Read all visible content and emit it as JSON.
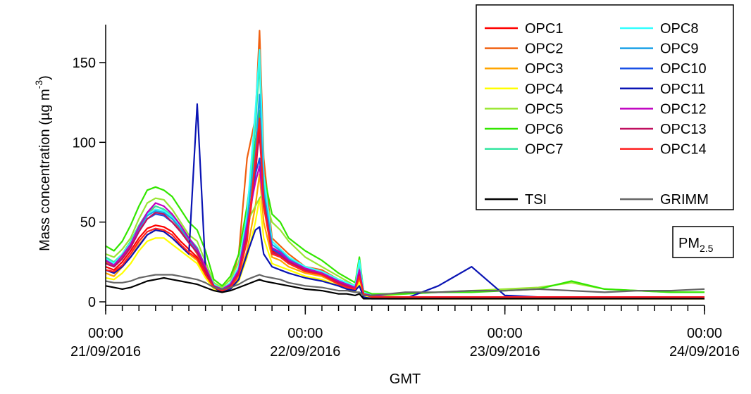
{
  "chart_data": {
    "type": "line",
    "ylabel": [
      "Mass concentration (µg m",
      "-3",
      ")"
    ],
    "xlabel": "GMT",
    "annotation": {
      "text": "PM",
      "subscript": "2.5"
    },
    "x": [
      0,
      1,
      2,
      3,
      4,
      5,
      6,
      7,
      8,
      9,
      10,
      11,
      12,
      13,
      14,
      15,
      16,
      17,
      18,
      18.5,
      19,
      20,
      21,
      22,
      24,
      26,
      28,
      29,
      30,
      30.5,
      31,
      32,
      34,
      36,
      40,
      44,
      48,
      52,
      56,
      60,
      64,
      68,
      72
    ],
    "xlim": [
      0,
      72
    ],
    "xticks": [
      {
        "value": 0,
        "label": [
          "00:00",
          "21/09/2016"
        ]
      },
      {
        "value": 24,
        "label": [
          "00:00",
          "22/09/2016"
        ]
      },
      {
        "value": 48,
        "label": [
          "00:00",
          "23/09/2016"
        ]
      },
      {
        "value": 72,
        "label": [
          "00:00",
          "24/09/2016"
        ]
      }
    ],
    "xminorticks": [
      0,
      2,
      4,
      6,
      8,
      10,
      12,
      14,
      16,
      18,
      20,
      22,
      24,
      26,
      28,
      30,
      32,
      34,
      36,
      38,
      40,
      42,
      44,
      46,
      48,
      50,
      52,
      54,
      56,
      58,
      60,
      62,
      64,
      66,
      68,
      70,
      72
    ],
    "ylim": [
      -2.2,
      173.8
    ],
    "yticks": [
      0,
      50,
      100,
      150
    ],
    "series": [
      {
        "name": "OPC1",
        "color": "#ff0000",
        "values": [
          22,
          20,
          25,
          32,
          40,
          46,
          48,
          47,
          44,
          38,
          33,
          28,
          18,
          10,
          8,
          10,
          18,
          40,
          80,
          110,
          70,
          32,
          30,
          26,
          20,
          18,
          12,
          10,
          8,
          18,
          6,
          4,
          3,
          3,
          3,
          3,
          3,
          3,
          3,
          3,
          3,
          3,
          3
        ]
      },
      {
        "name": "OPC2",
        "color": "#f06010",
        "values": [
          25,
          22,
          28,
          35,
          45,
          55,
          60,
          58,
          52,
          45,
          38,
          30,
          20,
          11,
          8,
          12,
          30,
          90,
          115,
          170,
          90,
          40,
          35,
          30,
          22,
          20,
          14,
          11,
          9,
          22,
          6,
          4,
          3,
          3,
          3,
          3,
          3,
          3,
          3,
          3,
          3,
          3,
          3
        ]
      },
      {
        "name": "OPC3",
        "color": "#ffa500",
        "values": [
          18,
          16,
          22,
          28,
          36,
          42,
          45,
          44,
          40,
          35,
          30,
          26,
          16,
          9,
          7,
          9,
          15,
          32,
          60,
          80,
          50,
          28,
          26,
          22,
          18,
          16,
          11,
          9,
          7,
          14,
          5,
          3,
          2,
          2,
          2,
          2,
          2,
          2,
          2,
          2,
          2,
          2,
          2
        ]
      },
      {
        "name": "OPC4",
        "color": "#ffff00",
        "values": [
          15,
          14,
          18,
          24,
          32,
          38,
          40,
          40,
          36,
          32,
          28,
          24,
          15,
          8,
          6,
          8,
          13,
          28,
          50,
          65,
          40,
          24,
          22,
          20,
          16,
          14,
          10,
          8,
          6,
          12,
          4,
          3,
          2,
          2,
          2,
          2,
          2,
          2,
          2,
          2,
          2,
          2,
          2
        ]
      },
      {
        "name": "OPC5",
        "color": "#99e632",
        "values": [
          30,
          28,
          33,
          40,
          52,
          62,
          65,
          64,
          58,
          50,
          42,
          38,
          25,
          12,
          9,
          14,
          25,
          50,
          60,
          65,
          68,
          50,
          45,
          38,
          28,
          22,
          16,
          13,
          10,
          20,
          6,
          4,
          4,
          5,
          6,
          7,
          8,
          9,
          12,
          8,
          7,
          6,
          6
        ]
      },
      {
        "name": "OPC6",
        "color": "#33e600",
        "values": [
          35,
          32,
          38,
          48,
          60,
          70,
          72,
          70,
          66,
          58,
          50,
          45,
          32,
          14,
          10,
          16,
          30,
          60,
          100,
          120,
          80,
          55,
          50,
          40,
          32,
          26,
          18,
          15,
          12,
          28,
          7,
          5,
          5,
          5,
          6,
          6,
          7,
          8,
          13,
          8,
          7,
          6,
          6
        ]
      },
      {
        "name": "OPC7",
        "color": "#33e6a0",
        "values": [
          28,
          25,
          30,
          38,
          48,
          56,
          60,
          58,
          54,
          48,
          40,
          34,
          22,
          11,
          8,
          12,
          22,
          55,
          110,
          150,
          75,
          38,
          33,
          28,
          22,
          19,
          14,
          12,
          10,
          25,
          6,
          4,
          3,
          3,
          3,
          3,
          3,
          3,
          3,
          3,
          3,
          3,
          3
        ]
      },
      {
        "name": "OPC8",
        "color": "#33ffff",
        "values": [
          27,
          24,
          30,
          37,
          47,
          55,
          58,
          57,
          53,
          47,
          40,
          33,
          22,
          11,
          8,
          12,
          22,
          55,
          120,
          158,
          80,
          38,
          33,
          28,
          22,
          19,
          14,
          12,
          10,
          26,
          6,
          4,
          3,
          3,
          3,
          3,
          3,
          3,
          3,
          3,
          3,
          3,
          3
        ]
      },
      {
        "name": "OPC9",
        "color": "#1aa0e6",
        "values": [
          26,
          23,
          29,
          36,
          46,
          54,
          57,
          56,
          52,
          46,
          39,
          32,
          21,
          10,
          8,
          11,
          20,
          50,
          95,
          130,
          70,
          36,
          32,
          27,
          21,
          18,
          13,
          11,
          9,
          20,
          5,
          4,
          3,
          3,
          3,
          3,
          3,
          3,
          3,
          3,
          3,
          3,
          3
        ]
      },
      {
        "name": "OPC10",
        "color": "#1a50e6",
        "values": [
          24,
          22,
          27,
          34,
          44,
          52,
          55,
          54,
          50,
          44,
          37,
          31,
          20,
          10,
          7,
          10,
          19,
          45,
          80,
          90,
          60,
          33,
          30,
          25,
          20,
          17,
          12,
          10,
          8,
          18,
          5,
          3,
          3,
          3,
          3,
          3,
          3,
          3,
          3,
          3,
          3,
          3,
          3
        ]
      },
      {
        "name": "OPC11",
        "color": "#0a14b4",
        "values": [
          20,
          18,
          22,
          28,
          35,
          42,
          45,
          44,
          40,
          35,
          30,
          124,
          20,
          9,
          6,
          8,
          14,
          30,
          45,
          47,
          30,
          22,
          20,
          18,
          15,
          13,
          10,
          8,
          7,
          10,
          3,
          2,
          2,
          2,
          10,
          22,
          4,
          3,
          3,
          3,
          3,
          3,
          3
        ]
      },
      {
        "name": "OPC12",
        "color": "#c000c0",
        "values": [
          26,
          23,
          29,
          36,
          47,
          56,
          62,
          60,
          55,
          48,
          40,
          33,
          22,
          10,
          8,
          11,
          20,
          48,
          75,
          85,
          60,
          34,
          31,
          26,
          21,
          18,
          13,
          11,
          9,
          20,
          5,
          4,
          3,
          3,
          3,
          3,
          3,
          3,
          3,
          3,
          3,
          3,
          3
        ]
      },
      {
        "name": "OPC13",
        "color": "#c01060",
        "values": [
          24,
          22,
          27,
          34,
          44,
          52,
          56,
          55,
          50,
          44,
          37,
          31,
          20,
          10,
          7,
          10,
          18,
          42,
          85,
          105,
          65,
          31,
          29,
          25,
          20,
          17,
          12,
          10,
          8,
          17,
          5,
          3,
          3,
          3,
          3,
          3,
          3,
          3,
          3,
          3,
          3,
          3,
          3
        ]
      },
      {
        "name": "OPC14",
        "color": "#ff2020",
        "values": [
          20,
          19,
          23,
          30,
          38,
          44,
          46,
          45,
          42,
          36,
          31,
          27,
          17,
          9,
          7,
          9,
          17,
          38,
          90,
          115,
          60,
          30,
          28,
          24,
          19,
          17,
          11,
          9,
          8,
          16,
          5,
          3,
          3,
          3,
          3,
          3,
          3,
          3,
          3,
          3,
          3,
          3,
          3
        ]
      },
      {
        "name": "TSI",
        "color": "#000000",
        "values": [
          10,
          9,
          8,
          9,
          11,
          13,
          14,
          15,
          14,
          13,
          12,
          11,
          9,
          7,
          6,
          7,
          9,
          11,
          13,
          14,
          13,
          12,
          11,
          10,
          8,
          7,
          5,
          5,
          4,
          5,
          2,
          2,
          2,
          2,
          2,
          2,
          2,
          2,
          2,
          2,
          2,
          2,
          2
        ]
      },
      {
        "name": "GRIMM",
        "color": "#666666",
        "values": [
          13,
          12,
          12,
          13,
          15,
          16,
          17,
          17,
          17,
          16,
          15,
          14,
          12,
          9,
          8,
          9,
          11,
          14,
          16,
          17,
          16,
          15,
          14,
          12,
          10,
          9,
          7,
          7,
          6,
          6,
          4,
          4,
          5,
          6,
          6,
          7,
          7,
          8,
          7,
          6,
          7,
          7,
          8
        ]
      }
    ]
  }
}
